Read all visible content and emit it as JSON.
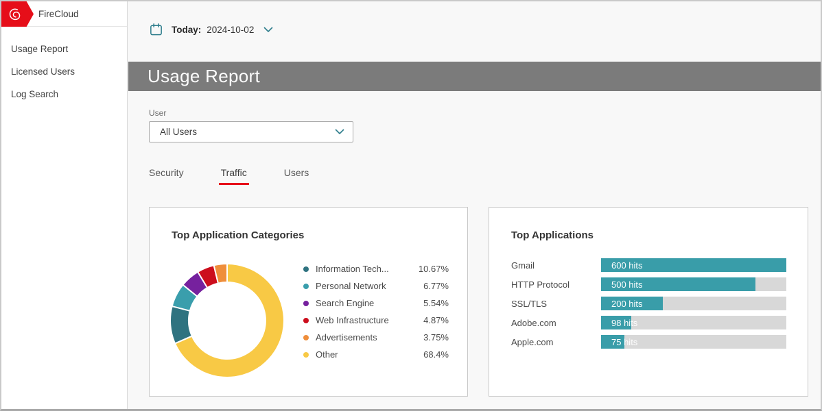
{
  "brand": {
    "name": "FireCloud",
    "flag_color": "#e60e19"
  },
  "sidebar": {
    "items": [
      {
        "label": "Usage Report"
      },
      {
        "label": "Licensed Users"
      },
      {
        "label": "Log Search"
      }
    ]
  },
  "datebar": {
    "label": "Today",
    "separator": ":",
    "value": "2024-10-02"
  },
  "page": {
    "title": "Usage Report"
  },
  "filters": {
    "user_label": "User",
    "user_value": "All Users"
  },
  "tabs": [
    {
      "label": "Security",
      "active": false
    },
    {
      "label": "Traffic",
      "active": true
    },
    {
      "label": "Users",
      "active": false
    }
  ],
  "chart_data": [
    {
      "type": "pie",
      "donut": true,
      "title": "Top Application Categories",
      "legend_position": "right",
      "start_angle_deg": -90,
      "direction": "clockwise",
      "draw_order": [
        5,
        0,
        1,
        2,
        3,
        4
      ],
      "segments": [
        {
          "label": "Information Tech...",
          "value": 10.67,
          "display": "10.67%",
          "color": "#2f7380"
        },
        {
          "label": "Personal Network",
          "value": 6.77,
          "display": "6.77%",
          "color": "#3a9eac"
        },
        {
          "label": "Search Engine",
          "value": 5.54,
          "display": "5.54%",
          "color": "#76219e"
        },
        {
          "label": "Web Infrastructure",
          "value": 4.87,
          "display": "4.87%",
          "color": "#cc0e1d"
        },
        {
          "label": "Advertisements",
          "value": 3.75,
          "display": "3.75%",
          "color": "#ef8e3b"
        },
        {
          "label": "Other",
          "value": 68.4,
          "display": "68.4%",
          "color": "#f8c945"
        }
      ]
    },
    {
      "type": "bar",
      "orientation": "horizontal",
      "title": "Top Applications",
      "max_value": 600,
      "bar_color": "#399da9",
      "track_color": "#d8d8d8",
      "bars": [
        {
          "label": "Gmail",
          "value": 600,
          "display": "600 hits"
        },
        {
          "label": "HTTP Protocol",
          "value": 500,
          "display": "500 hits"
        },
        {
          "label": "SSL/TLS",
          "value": 200,
          "display": "200 hits"
        },
        {
          "label": "Adobe.com",
          "value": 98,
          "display": "98 hits"
        },
        {
          "label": "Apple.com",
          "value": 75,
          "display": "75 hits"
        }
      ]
    }
  ],
  "colors": {
    "brand_red": "#e60e19",
    "teal_icon": "#2e7d8c",
    "banner_gray": "#7b7b7b"
  }
}
